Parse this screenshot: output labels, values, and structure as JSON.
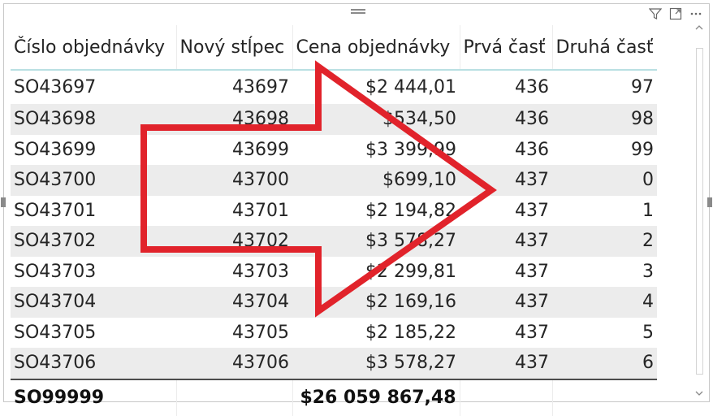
{
  "table": {
    "columns": [
      "Číslo objednávky",
      "Nový stĺpec",
      "Cena objednávky",
      "Prvá časť",
      "Druhá časť"
    ],
    "rows": [
      [
        "SO43697",
        "43697",
        "$2 444,01",
        "436",
        "97"
      ],
      [
        "SO43698",
        "43698",
        "$534,50",
        "436",
        "98"
      ],
      [
        "SO43699",
        "43699",
        "$3 399,99",
        "436",
        "99"
      ],
      [
        "SO43700",
        "43700",
        "$699,10",
        "437",
        "0"
      ],
      [
        "SO43701",
        "43701",
        "$2 194,82",
        "437",
        "1"
      ],
      [
        "SO43702",
        "43702",
        "$3 578,27",
        "437",
        "2"
      ],
      [
        "SO43703",
        "43703",
        "$2 299,81",
        "437",
        "3"
      ],
      [
        "SO43704",
        "43704",
        "$2 169,16",
        "437",
        "4"
      ],
      [
        "SO43705",
        "43705",
        "$2 185,22",
        "437",
        "5"
      ],
      [
        "SO43706",
        "43706",
        "$3 578,27",
        "437",
        "6"
      ]
    ],
    "total": [
      "SO99999",
      "",
      "$26 059 867,48",
      "",
      ""
    ]
  },
  "icons": {
    "filter": "filter-icon",
    "focus": "focus-mode-icon",
    "more": "more-options-icon",
    "arrow": "red-arrow-annotation"
  },
  "colors": {
    "arrow": "#e1232b",
    "header_rule": "#b9e0e3",
    "band": "#ececec"
  }
}
